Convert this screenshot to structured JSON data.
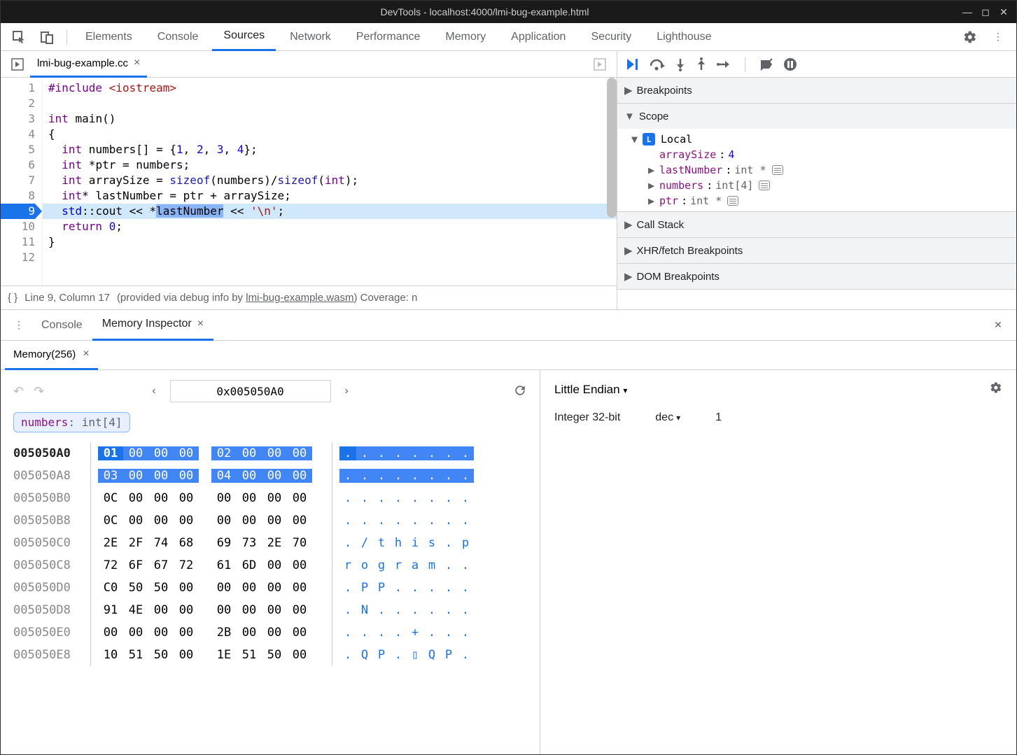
{
  "window": {
    "title": "DevTools - localhost:4000/lmi-bug-example.html"
  },
  "main_tabs": [
    "Elements",
    "Console",
    "Sources",
    "Network",
    "Performance",
    "Memory",
    "Application",
    "Security",
    "Lighthouse"
  ],
  "active_main_tab": "Sources",
  "file": {
    "name": "lmi-bug-example.cc",
    "lines": [
      {
        "n": 1,
        "html": "<span class='kw'>#include</span> <span class='str'>&lt;iostream&gt;</span>"
      },
      {
        "n": 2,
        "html": ""
      },
      {
        "n": 3,
        "html": "<span class='kw'>int</span> main()"
      },
      {
        "n": 4,
        "html": "{"
      },
      {
        "n": 5,
        "html": "  <span class='kw'>int</span> numbers[] = {<span class='num'>1</span>, <span class='num'>2</span>, <span class='num'>3</span>, <span class='num'>4</span>};"
      },
      {
        "n": 6,
        "html": "  <span class='kw'>int</span> *ptr = numbers;"
      },
      {
        "n": 7,
        "html": "  <span class='kw'>int</span> arraySize = <span class='fn'>sizeof</span>(numbers)/<span class='fn'>sizeof</span>(<span class='kw'>int</span>);"
      },
      {
        "n": 8,
        "html": "  <span class='kw'>int</span>* lastNumber = ptr + arraySize;"
      },
      {
        "n": 9,
        "html": "  <span class='id2'>std</span>::cout &lt;&lt; *<span class='sel'>lastNumber</span> &lt;&lt; <span class='str'>'\\n'</span>;",
        "hl": true
      },
      {
        "n": 10,
        "html": "  <span class='kw'>return</span> <span class='num'>0</span>;"
      },
      {
        "n": 11,
        "html": "}"
      },
      {
        "n": 12,
        "html": ""
      }
    ]
  },
  "status": {
    "braces": "{ }",
    "pos": "Line 9, Column 17",
    "info": "(provided via debug info by ",
    "link": "lmi-bug-example.wasm",
    "info2": ")  Coverage: n"
  },
  "debug_panels": {
    "breakpoints": "Breakpoints",
    "scope": "Scope",
    "local": "Local",
    "vars": [
      {
        "name": "arraySize",
        "sep": ": ",
        "val": "4",
        "type": "",
        "tri": ""
      },
      {
        "name": "lastNumber",
        "sep": ": ",
        "type": "int *",
        "tri": "▶",
        "mem": true
      },
      {
        "name": "numbers",
        "sep": ": ",
        "type": "int[4]",
        "tri": "▶",
        "mem": true
      },
      {
        "name": "ptr",
        "sep": ": ",
        "type": "int *",
        "tri": "▶",
        "mem": true
      }
    ],
    "callstack": "Call Stack",
    "xhr": "XHR/fetch Breakpoints",
    "dom": "DOM Breakpoints"
  },
  "drawer": {
    "console": "Console",
    "meminsp": "Memory Inspector",
    "memtab": "Memory(256)"
  },
  "memory": {
    "address": "0x005050A0",
    "chip": {
      "name": "numbers",
      "type": ": int[4]"
    },
    "rows": [
      {
        "addr": "005050A0",
        "bold": true,
        "g1": [
          "01",
          "00",
          "00",
          "00"
        ],
        "g2": [
          "02",
          "00",
          "00",
          "00"
        ],
        "hl": true,
        "first": true,
        "asc": [
          ".",
          ".",
          ".",
          ".",
          ".",
          ".",
          ".",
          "."
        ]
      },
      {
        "addr": "005050A8",
        "g1": [
          "03",
          "00",
          "00",
          "00"
        ],
        "g2": [
          "04",
          "00",
          "00",
          "00"
        ],
        "hl": true,
        "asc": [
          ".",
          ".",
          ".",
          ".",
          ".",
          ".",
          ".",
          "."
        ]
      },
      {
        "addr": "005050B0",
        "g1": [
          "0C",
          "00",
          "00",
          "00"
        ],
        "g2": [
          "00",
          "00",
          "00",
          "00"
        ],
        "asc": [
          ".",
          ".",
          ".",
          ".",
          ".",
          ".",
          ".",
          "."
        ]
      },
      {
        "addr": "005050B8",
        "g1": [
          "0C",
          "00",
          "00",
          "00"
        ],
        "g2": [
          "00",
          "00",
          "00",
          "00"
        ],
        "asc": [
          ".",
          ".",
          ".",
          ".",
          ".",
          ".",
          ".",
          "."
        ]
      },
      {
        "addr": "005050C0",
        "g1": [
          "2E",
          "2F",
          "74",
          "68"
        ],
        "g2": [
          "69",
          "73",
          "2E",
          "70"
        ],
        "asc": [
          ".",
          "/",
          "t",
          "h",
          "i",
          "s",
          ".",
          "p"
        ]
      },
      {
        "addr": "005050C8",
        "g1": [
          "72",
          "6F",
          "67",
          "72"
        ],
        "g2": [
          "61",
          "6D",
          "00",
          "00"
        ],
        "asc": [
          "r",
          "o",
          "g",
          "r",
          "a",
          "m",
          ".",
          "."
        ]
      },
      {
        "addr": "005050D0",
        "g1": [
          "C0",
          "50",
          "50",
          "00"
        ],
        "g2": [
          "00",
          "00",
          "00",
          "00"
        ],
        "asc": [
          ".",
          "P",
          "P",
          ".",
          ".",
          ".",
          ".",
          "."
        ]
      },
      {
        "addr": "005050D8",
        "g1": [
          "91",
          "4E",
          "00",
          "00"
        ],
        "g2": [
          "00",
          "00",
          "00",
          "00"
        ],
        "asc": [
          ".",
          "N",
          ".",
          ".",
          ".",
          ".",
          ".",
          "."
        ]
      },
      {
        "addr": "005050E0",
        "g1": [
          "00",
          "00",
          "00",
          "00"
        ],
        "g2": [
          "2B",
          "00",
          "00",
          "00"
        ],
        "asc": [
          ".",
          ".",
          ".",
          ".",
          "+",
          ".",
          ".",
          "."
        ]
      },
      {
        "addr": "005050E8",
        "g1": [
          "10",
          "51",
          "50",
          "00"
        ],
        "g2": [
          "1E",
          "51",
          "50",
          "00"
        ],
        "asc": [
          ".",
          "Q",
          "P",
          ".",
          "▯",
          "Q",
          "P",
          "."
        ]
      }
    ],
    "endian": "Little Endian",
    "int_label": "Integer 32-bit",
    "int_fmt": "dec",
    "int_val": "1"
  }
}
